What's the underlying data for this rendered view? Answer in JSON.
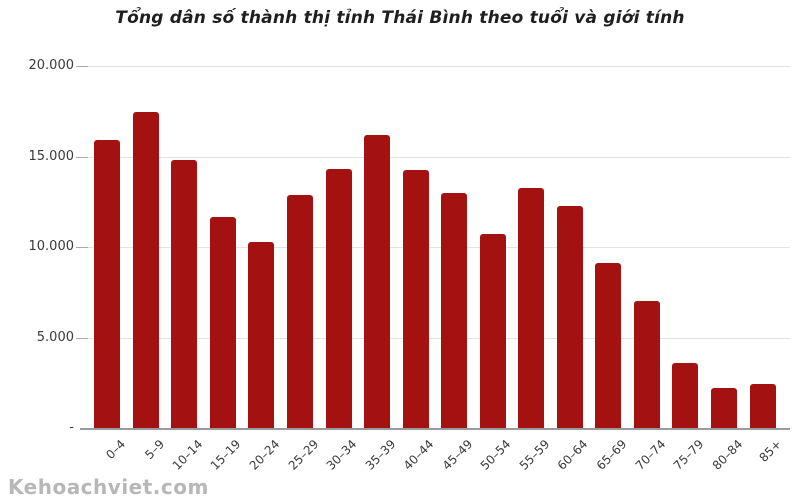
{
  "title": "Tổng dân số thành thị tỉnh Thái Bình theo tuổi và giới tính",
  "watermark": "Kehoachviet.com",
  "chart_data": {
    "type": "bar",
    "title": "Tổng dân số thành thị tỉnh Thái Bình theo tuổi và giới tính",
    "categories": [
      "0–4",
      "5–9",
      "10–14",
      "15–19",
      "20–24",
      "25–29",
      "30–34",
      "35–39",
      "40–44",
      "45–49",
      "50–54",
      "55–59",
      "60–64",
      "65–69",
      "70–74",
      "75–79",
      "80–84",
      "85+"
    ],
    "values": [
      15900,
      17450,
      14800,
      11650,
      10250,
      12850,
      14300,
      16200,
      14250,
      13000,
      10700,
      13250,
      12250,
      9100,
      7000,
      3600,
      2200,
      2450
    ],
    "xlabel": "",
    "ylabel": "",
    "ylim": [
      0,
      20000
    ],
    "yticks": [
      20000,
      15000,
      10000,
      5000,
      0
    ],
    "ytick_labels": [
      "20.000",
      "15.000",
      "10.000",
      "5.000",
      "-"
    ],
    "grid": true,
    "legend": "none",
    "bar_color": "#a31111"
  },
  "colors": {
    "bar": "#a31111",
    "gridline": "#e2e2e2",
    "axis_line": "#9b9b9b",
    "tick_mark": "#a9a9a9",
    "title_text": "#1f1f1f",
    "axis_text": "#3a3a3a",
    "watermark_text": "#b7b7b7",
    "background": "#ffffff"
  }
}
